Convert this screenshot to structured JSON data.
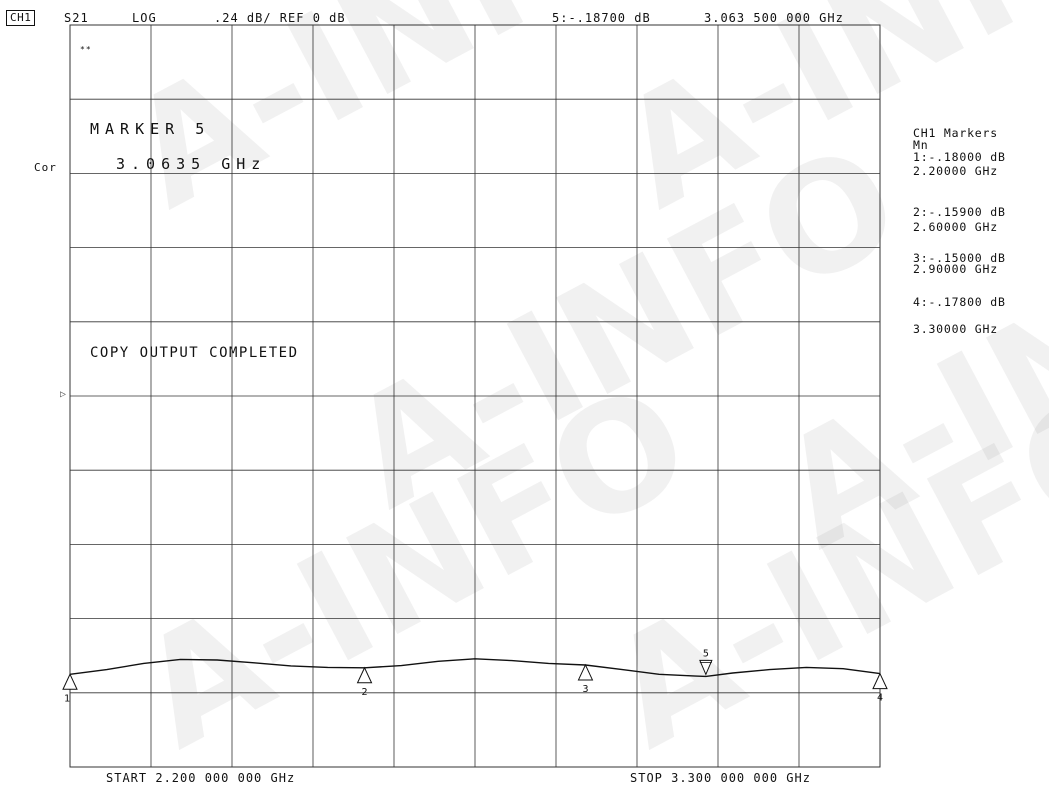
{
  "header": {
    "channel": "CH1",
    "parameter": "S21",
    "format": "LOG",
    "scale": ".24 dB/ REF 0 dB",
    "active_marker_readout": "5:-.18700 dB",
    "active_marker_freq": "3.063 500 000 GHz"
  },
  "left_annotations": {
    "correction": "Cor",
    "ref_pointer": "▷"
  },
  "screen_text": {
    "marker_title": "MARKER 5",
    "marker_freq": "3.0635 GHz",
    "status": "COPY OUTPUT COMPLETED",
    "corner_mark": "**"
  },
  "footer": {
    "start": "START 2.200 000 000 GHz",
    "stop": "STOP 3.300 000 000 GHz"
  },
  "marker_table": {
    "title": "CH1 Markers",
    "subtitle": "Mn",
    "entries": [
      {
        "value": "1:-.18000 dB",
        "freq": "2.20000 GHz"
      },
      {
        "value": "2:-.15900 dB",
        "freq": "2.60000 GHz"
      },
      {
        "value": "3:-.15000 dB",
        "freq": "2.90000 GHz"
      },
      {
        "value": "4:-.17800 dB",
        "freq": "3.30000 GHz"
      }
    ]
  },
  "watermark": "A-INFO",
  "colors": {
    "trace": "#111111",
    "grid": "#333333",
    "watermark": "#9a9a9a"
  },
  "chart_data": {
    "type": "line",
    "title": "",
    "xlabel": "",
    "ylabel": "",
    "xlim": [
      2.2,
      3.3
    ],
    "ylim": [
      -0.48,
      1.92
    ],
    "x_divisions": 10,
    "y_divisions": 10,
    "series": [
      {
        "x": [
          2.2,
          2.25,
          2.3,
          2.35,
          2.4,
          2.45,
          2.5,
          2.55,
          2.6,
          2.65,
          2.7,
          2.75,
          2.8,
          2.85,
          2.9,
          2.95,
          3.0,
          3.05,
          3.0635,
          3.1,
          3.15,
          3.2,
          3.25,
          3.3
        ],
        "y": [
          -0.18,
          -0.165,
          -0.145,
          -0.132,
          -0.134,
          -0.143,
          -0.153,
          -0.158,
          -0.159,
          -0.152,
          -0.138,
          -0.13,
          -0.136,
          -0.145,
          -0.15,
          -0.165,
          -0.18,
          -0.186,
          -0.187,
          -0.176,
          -0.165,
          -0.158,
          -0.162,
          -0.178
        ]
      }
    ],
    "markers": [
      {
        "label": "1",
        "x": 2.2,
        "y": -0.18,
        "style": "below"
      },
      {
        "label": "2",
        "x": 2.6,
        "y": -0.159,
        "style": "below"
      },
      {
        "label": "3",
        "x": 2.9,
        "y": -0.15,
        "style": "below"
      },
      {
        "label": "4",
        "x": 3.3,
        "y": -0.178,
        "style": "below"
      },
      {
        "label": "5",
        "x": 3.0635,
        "y": -0.187,
        "style": "above-active"
      }
    ]
  }
}
